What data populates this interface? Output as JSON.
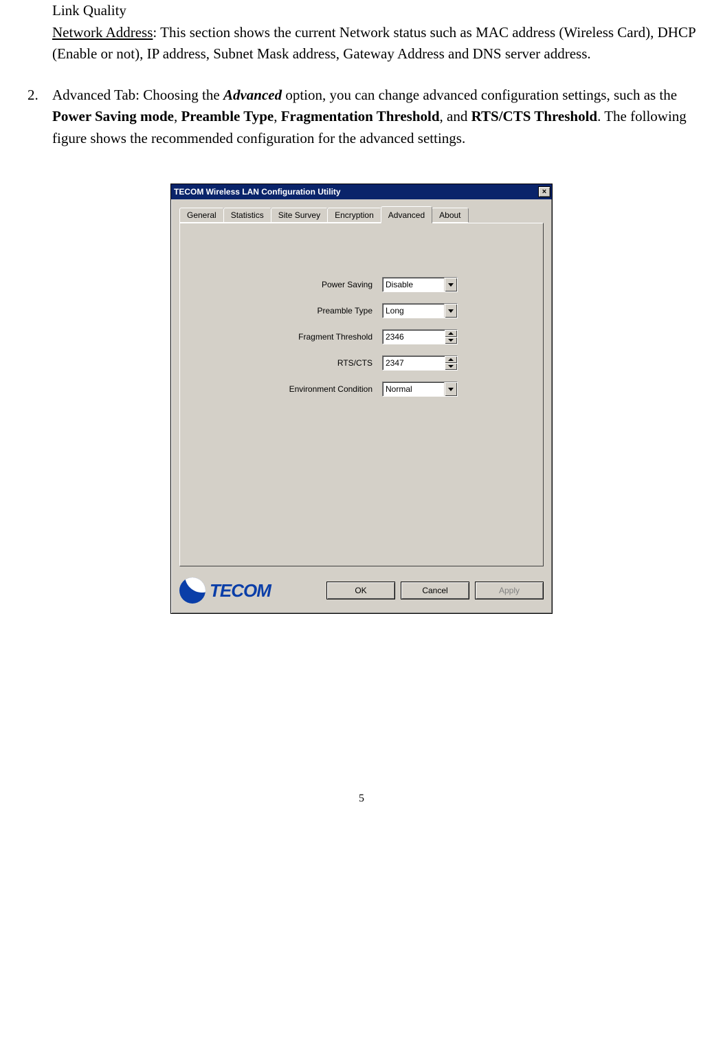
{
  "doc": {
    "link_quality": "Link Quality",
    "network_address_label": "Network Address",
    "network_address_rest": ": This section shows the current Network status such as MAC address (Wireless Card), DHCP (Enable or not), IP address, Subnet Mask address, Gateway Address and DNS server address.",
    "item2_num": "2.",
    "item2_pre": "Advanced Tab: Choosing the ",
    "item2_advanced": "Advanced",
    "item2_mid1": " option, you can change advanced configuration settings, such as the ",
    "item2_psm": "Power Saving mode",
    "item2_c1": ", ",
    "item2_preamble": "Preamble Type",
    "item2_c2": ", ",
    "item2_frag": "Fragmentation Threshold",
    "item2_c3": ", and ",
    "item2_rts": "RTS/CTS Threshold",
    "item2_tail": ". The following figure shows the recommended configuration for the advanced settings.",
    "page_number": "5"
  },
  "dialog": {
    "title": "TECOM Wireless LAN Configuration Utility",
    "close": "×",
    "tabs": {
      "general": "General",
      "statistics": "Statistics",
      "site_survey": "Site Survey",
      "encryption": "Encryption",
      "advanced": "Advanced",
      "about": "About"
    },
    "fields": {
      "power_saving": {
        "label": "Power Saving",
        "value": "Disable"
      },
      "preamble_type": {
        "label": "Preamble Type",
        "value": "Long"
      },
      "fragment_threshold": {
        "label": "Fragment Threshold",
        "value": "2346"
      },
      "rts_cts": {
        "label": "RTS/CTS",
        "value": "2347"
      },
      "environment": {
        "label": "Environment Condition",
        "value": "Normal"
      }
    },
    "logo_text": "TECOM",
    "buttons": {
      "ok": "OK",
      "cancel": "Cancel",
      "apply": "Apply"
    }
  }
}
